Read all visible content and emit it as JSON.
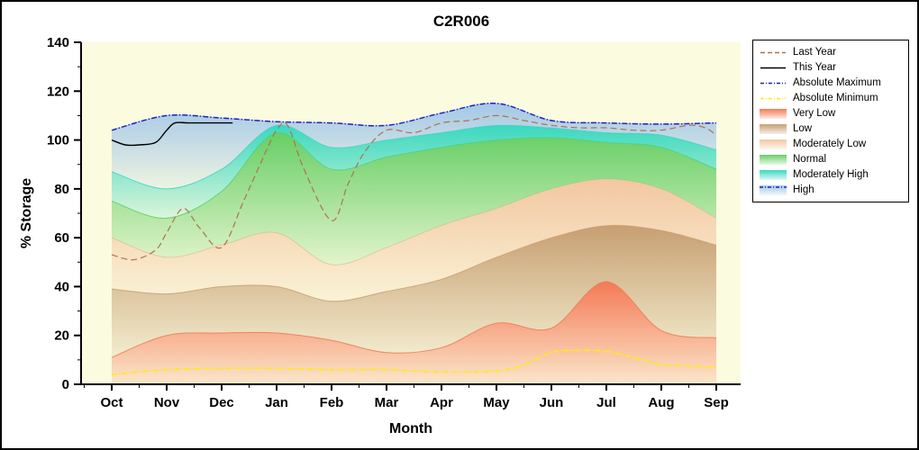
{
  "chart_data": {
    "type": "area",
    "title": "C2R006",
    "xlabel": "Month",
    "ylabel": "% Storage",
    "ylim": [
      0,
      140
    ],
    "yticks": [
      0,
      20,
      40,
      60,
      80,
      100,
      120,
      140
    ],
    "categories": [
      "Oct",
      "Nov",
      "Dec",
      "Jan",
      "Feb",
      "Mar",
      "Apr",
      "May",
      "Jun",
      "Jul",
      "Aug",
      "Sep"
    ],
    "plot_bg": "#fbfbe0",
    "grid": false,
    "legend_position": "outside-right",
    "bands": [
      {
        "name": "Very Low",
        "color": "#f4734f",
        "top": [
          11,
          20,
          21,
          21,
          18,
          13,
          15,
          25,
          23,
          42,
          22,
          19
        ]
      },
      {
        "name": "Low",
        "color": "#c49a6c",
        "top": [
          39,
          37,
          40,
          40,
          34,
          38,
          43,
          52,
          60,
          65,
          63,
          57
        ]
      },
      {
        "name": "Moderately Low",
        "color": "#f2c49e",
        "top": [
          60,
          52,
          57,
          62,
          49,
          56,
          65,
          72,
          80,
          84,
          80,
          68
        ]
      },
      {
        "name": "Normal",
        "color": "#5ecc5e",
        "top": [
          75,
          68,
          79,
          103,
          88,
          93,
          97,
          100,
          101,
          99,
          97,
          88
        ]
      },
      {
        "name": "Moderately High",
        "color": "#2fd6bd",
        "top": [
          87,
          80,
          88,
          106,
          97,
          100,
          103,
          106,
          105,
          103,
          102,
          96
        ]
      },
      {
        "name": "High",
        "color": "#9fc5e8",
        "top": [
          104,
          110,
          109,
          107.5,
          107,
          106,
          111,
          115,
          108,
          107,
          106.5,
          107
        ]
      }
    ],
    "lines": [
      {
        "name": "Absolute Minimum",
        "color": "#ffee00",
        "style": "dashdot",
        "width": 1.6,
        "x": [
          0,
          1,
          2,
          3,
          4,
          5,
          6,
          7,
          7.5,
          8,
          8.5,
          9,
          9.5,
          10,
          10.5,
          11
        ],
        "y": [
          4,
          6,
          6.5,
          6.5,
          6,
          6,
          5,
          5.5,
          8,
          13,
          14,
          13.5,
          11,
          8,
          7.5,
          7
        ]
      },
      {
        "name": "Absolute Maximum",
        "color": "#2020c0",
        "style": "dashdot",
        "width": 1.5,
        "x": [
          0,
          1,
          2,
          3,
          4,
          5,
          6,
          7,
          8,
          9,
          10,
          11
        ],
        "y": [
          104,
          110,
          109,
          107.5,
          107,
          106,
          111,
          115,
          108,
          107,
          106.5,
          107
        ]
      },
      {
        "name": "Last Year",
        "color": "#b0714c",
        "style": "dash",
        "width": 1.2,
        "x": [
          0,
          0.4,
          0.8,
          1,
          1.3,
          1.6,
          2,
          2.4,
          2.8,
          3,
          3.2,
          3.5,
          4,
          4.3,
          4.6,
          5,
          5.5,
          6,
          6.5,
          7,
          7.5,
          8,
          8.5,
          9,
          9.5,
          10,
          10.5,
          10.8,
          11
        ],
        "y": [
          53,
          51,
          55,
          62,
          72,
          64,
          56,
          75,
          95,
          104,
          106,
          88,
          67,
          82,
          95,
          104,
          103,
          107,
          108,
          110,
          108,
          106,
          105,
          105,
          104,
          104,
          106,
          105,
          102
        ]
      },
      {
        "name": "This Year",
        "color": "#000000",
        "style": "solid",
        "width": 1.4,
        "x": [
          0,
          0.25,
          0.5,
          0.8,
          1,
          1.15,
          1.4,
          1.8,
          2,
          2.2
        ],
        "y": [
          100,
          98,
          98,
          99,
          104,
          107,
          107,
          107,
          107,
          107
        ]
      }
    ],
    "legend": [
      {
        "label": "Last Year",
        "swatch": "line",
        "color": "#b0714c",
        "style": "dash"
      },
      {
        "label": "This Year",
        "swatch": "line",
        "color": "#000000",
        "style": "solid"
      },
      {
        "label": "Absolute Maximum",
        "swatch": "line",
        "color": "#2020c0",
        "style": "dashdot"
      },
      {
        "label": "Absolute Minimum",
        "swatch": "line",
        "color": "#ffee00",
        "style": "dashdot"
      },
      {
        "label": "Very Low",
        "swatch": "band",
        "color": "#f4734f"
      },
      {
        "label": "Low",
        "swatch": "band",
        "color": "#c49a6c"
      },
      {
        "label": "Moderately Low",
        "swatch": "band",
        "color": "#f2c49e"
      },
      {
        "label": "Normal",
        "swatch": "band",
        "color": "#5ecc5e"
      },
      {
        "label": "Moderately High",
        "swatch": "band",
        "color": "#2fd6bd"
      },
      {
        "label": "High",
        "swatch": "band-line",
        "color": "#9fc5e8",
        "line_color": "#2020c0",
        "style": "dashdot"
      }
    ]
  }
}
